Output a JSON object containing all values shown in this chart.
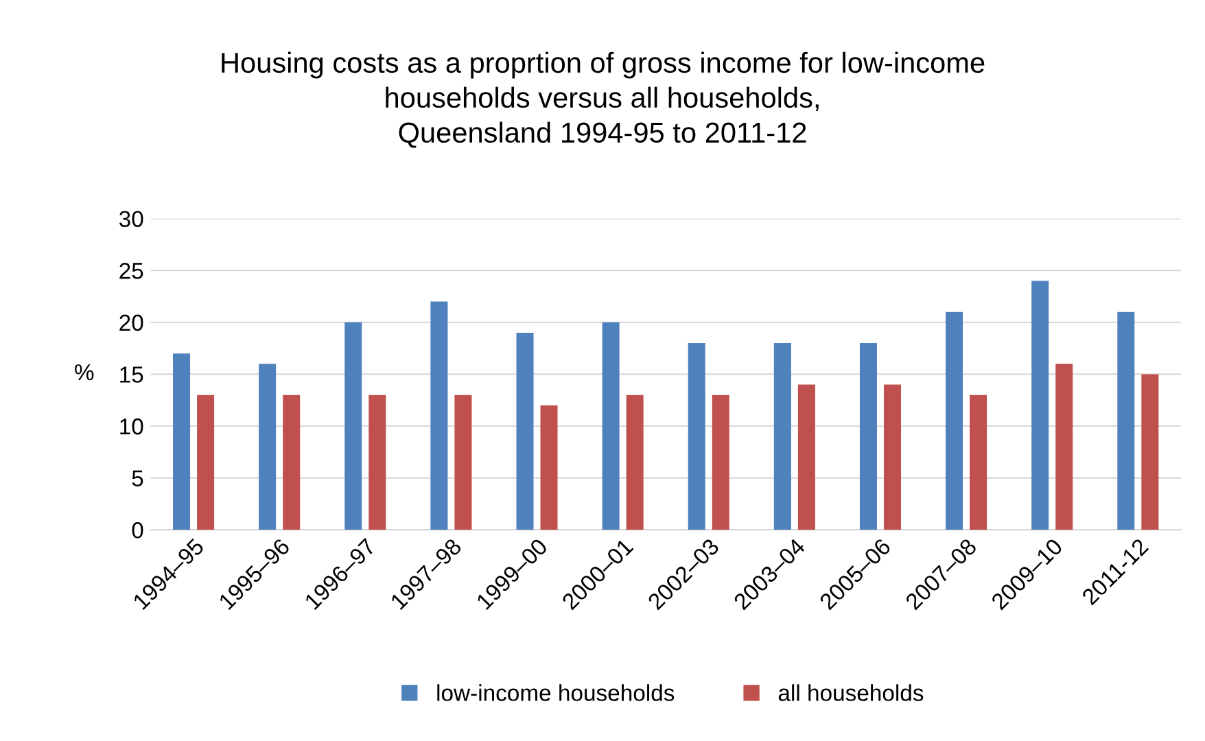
{
  "chart_data": {
    "type": "bar",
    "title": "Housing costs as a proprtion of gross income for low-income\nhouseholds versus all households,\nQueensland 1994-95 to 2011-12",
    "ylabel": "%",
    "categories": [
      "1994–95",
      "1995–96",
      "1996–97",
      "1997–98",
      "1999–00",
      "2000–01",
      "2002–03",
      "2003–04",
      "2005–06",
      "2007–08",
      "2009–10",
      "2011-12"
    ],
    "series": [
      {
        "name": "low-income households",
        "color": "#4f81bd",
        "values": [
          17,
          16,
          20,
          22,
          19,
          20,
          18,
          18,
          18,
          21,
          24,
          21
        ]
      },
      {
        "name": "all households",
        "color": "#c0504d",
        "values": [
          13,
          13,
          13,
          13,
          12,
          13,
          13,
          14,
          14,
          13,
          16,
          15
        ]
      }
    ],
    "ylim": [
      0,
      30
    ],
    "yticks": [
      0,
      5,
      10,
      15,
      20,
      25,
      30
    ],
    "grid": "y",
    "legend": "bottom"
  }
}
